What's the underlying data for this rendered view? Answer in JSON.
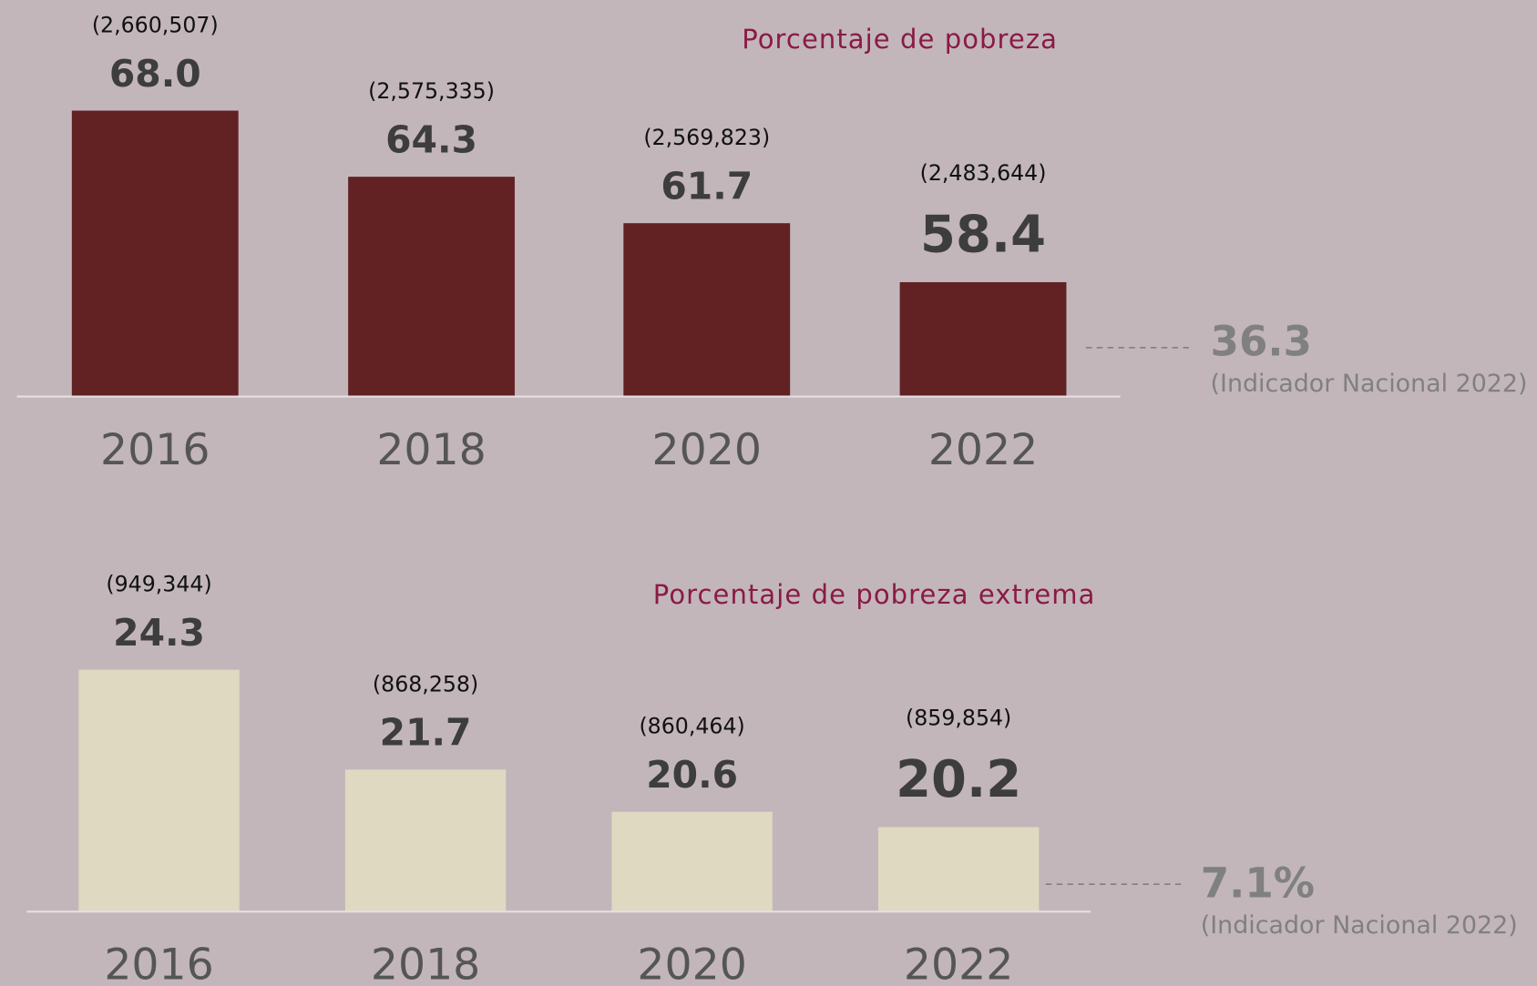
{
  "chart_data": [
    {
      "type": "bar",
      "title": "Porcentaje de pobreza",
      "categories": [
        "2016",
        "2018",
        "2020",
        "2022"
      ],
      "values": [
        68.0,
        64.3,
        61.7,
        58.4
      ],
      "value_labels": [
        "68.0",
        "64.3",
        "61.7",
        "58.4"
      ],
      "count_labels": [
        "(2,660,507)",
        "(2,575,335)",
        "(2,569,823)",
        "(2,483,644)"
      ],
      "color": "#622123",
      "ylim": [
        52,
        70
      ],
      "reference": {
        "value": 36.3,
        "label": "36.3",
        "note": "(Indicador Nacional 2022)"
      }
    },
    {
      "type": "bar",
      "title": "Porcentaje de pobreza extrema",
      "categories": [
        "2016",
        "2018",
        "2020",
        "2022"
      ],
      "values": [
        24.3,
        21.7,
        20.6,
        20.2
      ],
      "value_labels": [
        "24.3",
        "21.7",
        "20.6",
        "20.2"
      ],
      "count_labels": [
        "(949,344)",
        "(868,258)",
        "(860,464)",
        "(859,854)"
      ],
      "color": "#dfd9c1",
      "ylim": [
        18,
        25
      ],
      "reference": {
        "value": 7.1,
        "label": "7.1%",
        "note": "(Indicador Nacional 2022)"
      }
    }
  ]
}
